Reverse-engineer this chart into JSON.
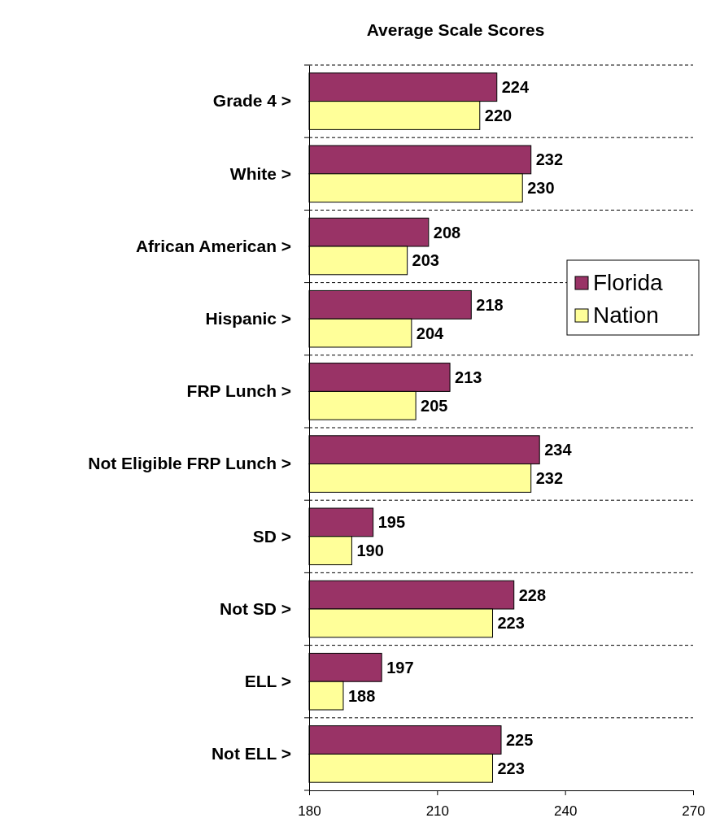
{
  "chart_data": {
    "type": "bar",
    "orientation": "horizontal",
    "title": "Average Scale Scores",
    "categories": [
      "Grade 4 >",
      "White >",
      "African American >",
      "Hispanic >",
      "FRP Lunch >",
      "Not Eligible FRP Lunch >",
      "SD >",
      "Not SD >",
      "ELL >",
      "Not ELL >"
    ],
    "series": [
      {
        "name": "Florida",
        "color": "#993366",
        "values": [
          224,
          232,
          208,
          218,
          213,
          234,
          195,
          228,
          197,
          225
        ]
      },
      {
        "name": "Nation",
        "color": "#ffff99",
        "values": [
          220,
          230,
          203,
          204,
          205,
          232,
          190,
          223,
          188,
          223
        ]
      }
    ],
    "xlim": [
      180,
      270
    ],
    "xticks": [
      180,
      210,
      240,
      270
    ],
    "grid": "y",
    "legend": "right",
    "data_labels": true
  }
}
